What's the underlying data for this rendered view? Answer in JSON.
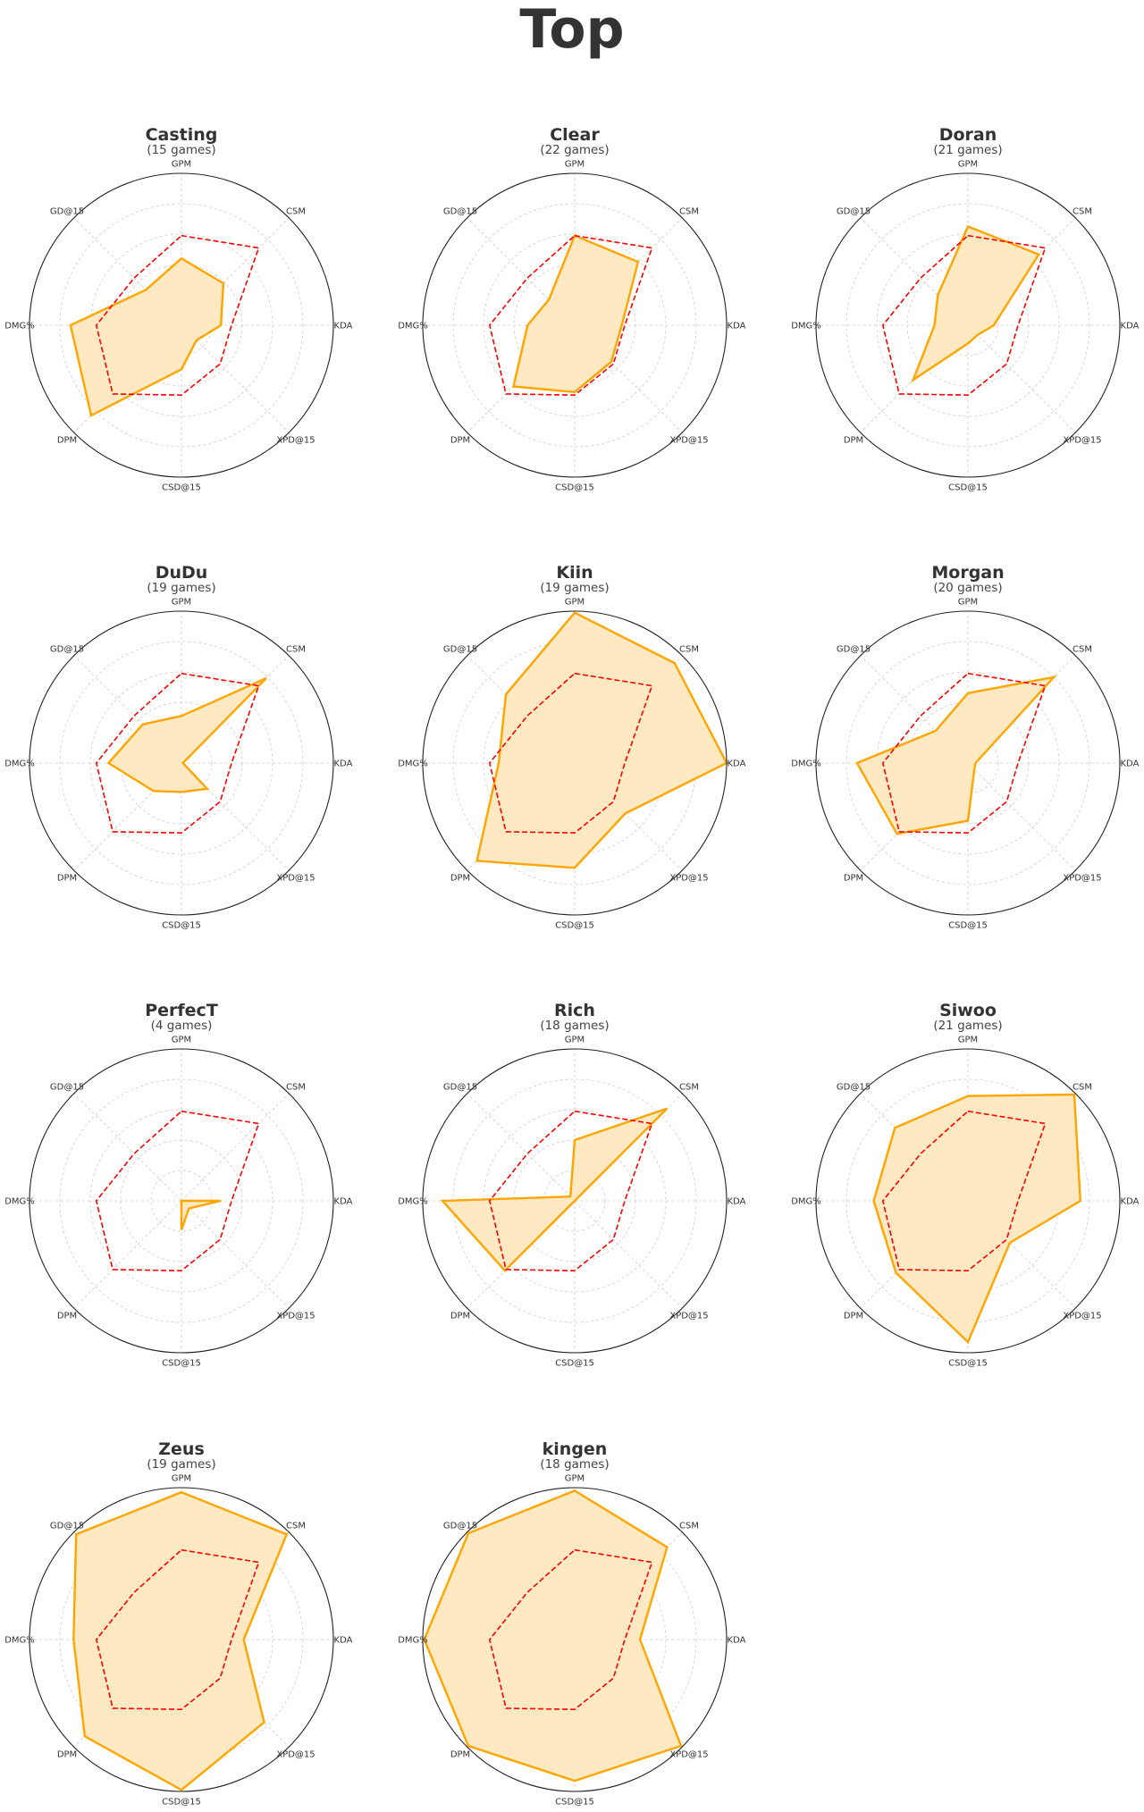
{
  "chart_data": {
    "type": "radar",
    "title": "Top",
    "axes": [
      "GPM",
      "CSM",
      "KDA",
      "XPD@15",
      "CSD@15",
      "DPM",
      "DMG%",
      "GD@15"
    ],
    "range": [
      0,
      1
    ],
    "rings": [
      0.2,
      0.4,
      0.6,
      0.8,
      1.0
    ],
    "grid": true,
    "colors": {
      "player": "#FFA500",
      "player_fill": "#FFE9C2",
      "reference": "#FF0000",
      "outline": "#222222",
      "grid": "#CCCCCC"
    },
    "reference_values": [
      0.59,
      0.72,
      0.33,
      0.36,
      0.46,
      0.64,
      0.56,
      0.44
    ],
    "panels": [
      {
        "name": "Casting",
        "subtitle": "(15 games)",
        "values": [
          0.44,
          0.39,
          0.26,
          0.14,
          0.29,
          0.84,
          0.73,
          0.33
        ]
      },
      {
        "name": "Clear",
        "subtitle": "(22 games)",
        "values": [
          0.59,
          0.59,
          0.31,
          0.34,
          0.44,
          0.57,
          0.31,
          0.24
        ]
      },
      {
        "name": "Doran",
        "subtitle": "(21 games)",
        "values": [
          0.65,
          0.66,
          0.17,
          0.09,
          0.12,
          0.51,
          0.22,
          0.28
        ]
      },
      {
        "name": "DuDu",
        "subtitle": "(19 games)",
        "values": [
          0.31,
          0.79,
          0.01,
          0.24,
          0.19,
          0.26,
          0.48,
          0.36
        ]
      },
      {
        "name": "Kiin",
        "subtitle": "(19 games)",
        "values": [
          0.99,
          0.93,
          1.0,
          0.47,
          0.69,
          0.91,
          0.5,
          0.64
        ]
      },
      {
        "name": "Morgan",
        "subtitle": "(20 games)",
        "values": [
          0.46,
          0.8,
          0.05,
          0.06,
          0.38,
          0.66,
          0.73,
          0.3
        ]
      },
      {
        "name": "PerfecT",
        "subtitle": "(4 games)",
        "values": [
          0.0,
          0.0,
          0.26,
          0.07,
          0.19,
          0.0,
          0.0,
          0.0
        ]
      },
      {
        "name": "Rich",
        "subtitle": "(18 games)",
        "values": [
          0.4,
          0.86,
          0.0,
          0.0,
          0.0,
          0.65,
          0.87,
          0.04
        ]
      },
      {
        "name": "Siwoo",
        "subtitle": "(21 games)",
        "values": [
          0.69,
          0.99,
          0.74,
          0.39,
          0.93,
          0.67,
          0.62,
          0.68
        ]
      },
      {
        "name": "Zeus",
        "subtitle": "(19 games)",
        "values": [
          0.97,
          0.98,
          0.41,
          0.77,
          0.99,
          0.9,
          0.71,
          0.98
        ]
      },
      {
        "name": "kingen",
        "subtitle": "(18 games)",
        "values": [
          0.98,
          0.86,
          0.43,
          0.99,
          0.93,
          0.99,
          0.99,
          0.99
        ]
      }
    ]
  }
}
